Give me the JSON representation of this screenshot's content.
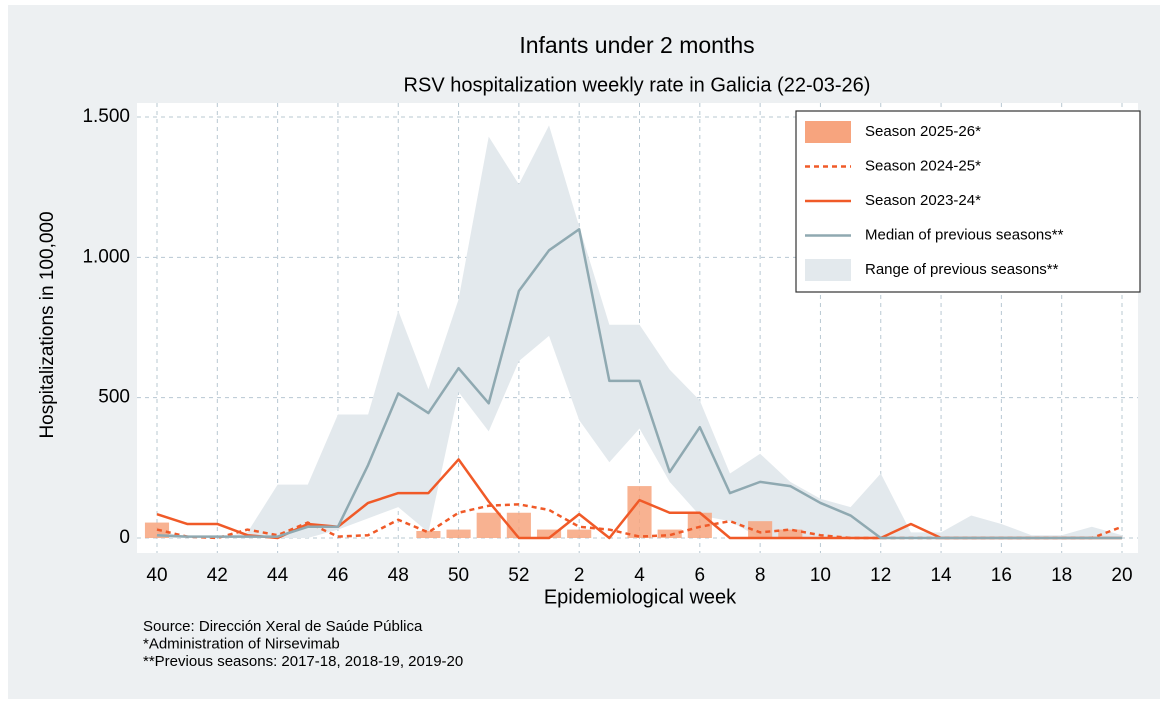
{
  "chart_data": {
    "type": "combo",
    "title": "Infants under 2 months",
    "subtitle": "RSV hospitalization weekly rate in Galicia (22-03-26)",
    "x_label": "Epidemiological week",
    "y_label": "Hospitalizations in 100,000",
    "categories": [
      "40",
      null,
      "42",
      null,
      "44",
      null,
      "46",
      null,
      "48",
      null,
      "50",
      null,
      "52",
      null,
      "2",
      null,
      "4",
      null,
      "6",
      null,
      "8",
      null,
      "10",
      null,
      "12",
      null,
      "14",
      null,
      "16",
      null,
      "18",
      null,
      "20"
    ],
    "ylim": [
      0,
      1500
    ],
    "yticks": [
      0,
      500,
      {
        "value": 1000,
        "label": "1.000"
      },
      {
        "value": 1500,
        "label": "1.500"
      }
    ],
    "grid": true,
    "legend": "upper right",
    "series": [
      {
        "name": "Season 2025-26*",
        "type": "bar",
        "color": "#f7a47e",
        "values": [
          55,
          0,
          0,
          0,
          0,
          0,
          0,
          0,
          0,
          25,
          30,
          90,
          90,
          30,
          30,
          0,
          185,
          30,
          90,
          0,
          60,
          30,
          0,
          0,
          0,
          null,
          null,
          null,
          null,
          null,
          null,
          null,
          null
        ]
      },
      {
        "name": "Season 2024-25*",
        "type": "line",
        "dashed": true,
        "color": "#f05a28",
        "values": [
          30,
          5,
          0,
          30,
          10,
          55,
          5,
          10,
          65,
          20,
          90,
          115,
          120,
          100,
          40,
          30,
          5,
          10,
          40,
          60,
          20,
          30,
          10,
          0,
          0,
          0,
          0,
          0,
          0,
          0,
          0,
          0,
          40
        ]
      },
      {
        "name": "Season 2023-24*",
        "type": "line",
        "color": "#f05a28",
        "values": [
          85,
          50,
          50,
          10,
          0,
          50,
          40,
          125,
          160,
          160,
          280,
          130,
          0,
          0,
          85,
          0,
          135,
          90,
          90,
          0,
          0,
          0,
          0,
          0,
          0,
          50,
          0,
          0,
          0,
          0,
          0,
          0,
          0
        ]
      },
      {
        "name": "Median of previous seasons**",
        "type": "line",
        "color": "#8fa9b1",
        "values": [
          10,
          5,
          5,
          5,
          5,
          40,
          40,
          260,
          515,
          445,
          605,
          480,
          880,
          1025,
          1100,
          560,
          560,
          235,
          395,
          160,
          200,
          185,
          125,
          80,
          0,
          0,
          0,
          0,
          0,
          0,
          0,
          0,
          0
        ]
      },
      {
        "name": "Range of previous seasons**",
        "type": "area",
        "color": "#e3e9ed",
        "upper": [
          30,
          0,
          0,
          20,
          190,
          190,
          440,
          440,
          810,
          530,
          850,
          1430,
          1260,
          1470,
          1110,
          760,
          760,
          600,
          490,
          230,
          300,
          200,
          140,
          110,
          230,
          20,
          20,
          80,
          50,
          10,
          10,
          40,
          10
        ],
        "lower": [
          0,
          0,
          0,
          0,
          0,
          0,
          30,
          70,
          110,
          20,
          520,
          380,
          630,
          720,
          420,
          270,
          390,
          200,
          80,
          60,
          0,
          0,
          0,
          0,
          0,
          0,
          0,
          0,
          0,
          0,
          0,
          0,
          0
        ]
      }
    ],
    "notes": [
      "Source: Dirección Xeral de Saúde Pública",
      "*Administration of Nirsevimab",
      "**Previous seasons: 2017-18, 2018-19, 2019-20"
    ]
  }
}
